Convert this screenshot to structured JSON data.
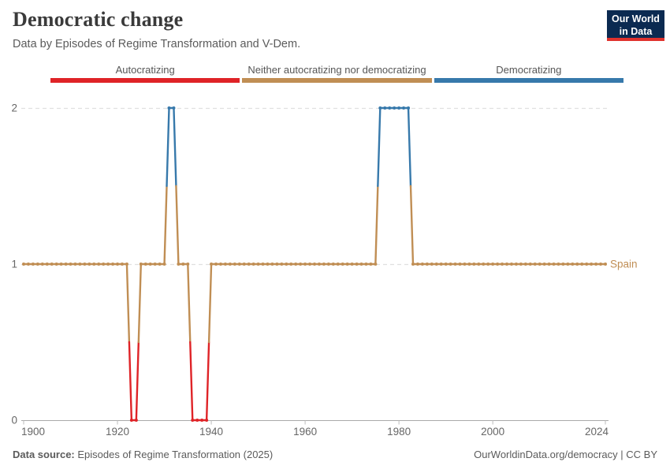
{
  "header": {
    "title": "Democratic change",
    "subtitle": "Data by Episodes of Regime Transformation and V-Dem.",
    "logo": {
      "line1": "Our World",
      "line2": "in Data",
      "bg_color": "#0b2a51",
      "accent_color": "#e0322d"
    }
  },
  "legend": {
    "items": [
      {
        "key": "autocratizing",
        "label": "Autocratizing",
        "color": "#df2327"
      },
      {
        "key": "neither",
        "label": "Neither autocratizing nor democratizing",
        "color": "#c08e54"
      },
      {
        "key": "democratizing",
        "label": "Democratizing",
        "color": "#3779ab"
      }
    ]
  },
  "chart_data": {
    "type": "line",
    "title": "Democratic change",
    "series_name": "Spain",
    "x_range": [
      1900,
      2024
    ],
    "x_ticks": [
      1900,
      1920,
      1940,
      1960,
      1980,
      2000,
      2024
    ],
    "y_ticks": [
      0,
      1,
      2
    ],
    "ylim": [
      0,
      2
    ],
    "grid": "dashed horizontal gridlines at y=1 and y=2; solid axis at y=0",
    "legend_position": "top",
    "value_meaning": {
      "0": "Autocratizing",
      "1": "Neither autocratizing nor democratizing",
      "2": "Democratizing"
    },
    "colors": {
      "autocratizing": "#df2327",
      "neither": "#c08e54",
      "democratizing": "#3779ab"
    },
    "episodes": [
      {
        "start": 1900,
        "end": 1922,
        "value": 1,
        "category": "neither"
      },
      {
        "start": 1923,
        "end": 1924,
        "value": 0,
        "category": "autocratizing"
      },
      {
        "start": 1925,
        "end": 1930,
        "value": 1,
        "category": "neither"
      },
      {
        "start": 1931,
        "end": 1932,
        "value": 2,
        "category": "democratizing"
      },
      {
        "start": 1933,
        "end": 1935,
        "value": 1,
        "category": "neither"
      },
      {
        "start": 1936,
        "end": 1939,
        "value": 0,
        "category": "autocratizing"
      },
      {
        "start": 1940,
        "end": 1975,
        "value": 1,
        "category": "neither"
      },
      {
        "start": 1976,
        "end": 1982,
        "value": 2,
        "category": "democratizing"
      },
      {
        "start": 1983,
        "end": 2024,
        "value": 1,
        "category": "neither"
      }
    ]
  },
  "footer": {
    "source_label": "Data source:",
    "source_text": "Episodes of Regime Transformation (2025)",
    "attribution": "OurWorldinData.org/democracy | CC BY"
  }
}
